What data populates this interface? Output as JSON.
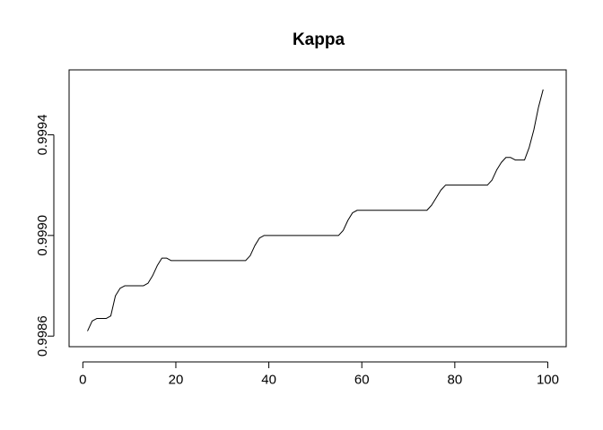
{
  "chart_data": {
    "type": "line",
    "title": "Kappa",
    "xlabel": "",
    "ylabel": "",
    "xlim": [
      -2.96,
      103.96
    ],
    "ylim": [
      0.998558,
      0.999658
    ],
    "x_ticks": [
      0,
      20,
      40,
      60,
      80,
      100
    ],
    "x_tick_labels": [
      "0",
      "20",
      "40",
      "60",
      "80",
      "100"
    ],
    "y_ticks": [
      0.9986,
      0.999,
      0.9994
    ],
    "y_tick_labels": [
      "0.9986",
      "0.9990",
      "0.9994"
    ],
    "grid": false,
    "legend": "none",
    "line_color": "#000000",
    "series": [
      {
        "x": [
          1,
          2,
          3,
          4,
          5,
          6,
          7,
          8,
          9,
          10,
          11,
          12,
          13,
          14,
          15,
          16,
          17,
          18,
          19,
          20,
          21,
          22,
          23,
          24,
          25,
          26,
          27,
          28,
          29,
          30,
          31,
          32,
          33,
          34,
          35,
          36,
          37,
          38,
          39,
          40,
          41,
          42,
          43,
          44,
          45,
          46,
          47,
          48,
          49,
          50,
          51,
          52,
          53,
          54,
          55,
          56,
          57,
          58,
          59,
          60,
          61,
          62,
          63,
          64,
          65,
          66,
          67,
          68,
          69,
          70,
          71,
          72,
          73,
          74,
          75,
          76,
          77,
          78,
          79,
          80,
          81,
          82,
          83,
          84,
          85,
          86,
          87,
          88,
          89,
          90,
          91,
          92,
          93,
          94,
          95,
          96,
          97,
          98,
          99
        ],
        "values": [
          0.99862,
          0.99866,
          0.99867,
          0.99867,
          0.99867,
          0.99868,
          0.99876,
          0.99879,
          0.9988,
          0.9988,
          0.9988,
          0.9988,
          0.9988,
          0.99881,
          0.99884,
          0.99888,
          0.99891,
          0.99891,
          0.9989,
          0.9989,
          0.9989,
          0.9989,
          0.9989,
          0.9989,
          0.9989,
          0.9989,
          0.9989,
          0.9989,
          0.9989,
          0.9989,
          0.9989,
          0.9989,
          0.9989,
          0.9989,
          0.9989,
          0.99892,
          0.99896,
          0.99899,
          0.999,
          0.999,
          0.999,
          0.999,
          0.999,
          0.999,
          0.999,
          0.999,
          0.999,
          0.999,
          0.999,
          0.999,
          0.999,
          0.999,
          0.999,
          0.999,
          0.999,
          0.99902,
          0.99906,
          0.99909,
          0.9991,
          0.9991,
          0.9991,
          0.9991,
          0.9991,
          0.9991,
          0.9991,
          0.9991,
          0.9991,
          0.9991,
          0.9991,
          0.9991,
          0.9991,
          0.9991,
          0.9991,
          0.9991,
          0.99912,
          0.99915,
          0.99918,
          0.9992,
          0.9992,
          0.9992,
          0.9992,
          0.9992,
          0.9992,
          0.9992,
          0.9992,
          0.9992,
          0.9992,
          0.99922,
          0.99926,
          0.99929,
          0.99931,
          0.99931,
          0.9993,
          0.9993,
          0.9993,
          0.99935,
          0.99942,
          0.99951,
          0.99958
        ]
      }
    ]
  }
}
